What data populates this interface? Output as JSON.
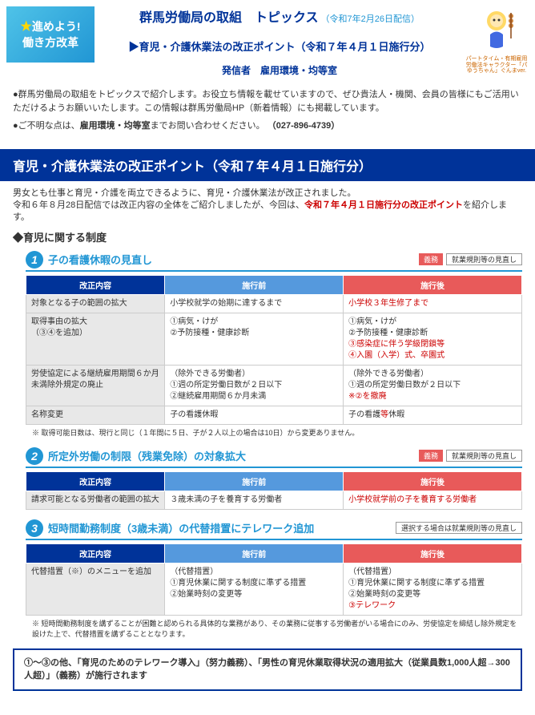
{
  "header": {
    "logo_line1": "進めよう!",
    "logo_line2": "働き方改革",
    "title_main": "群馬労働局の取組　トピックス",
    "title_date": "（令和7年2月26日配信）",
    "subtitle": "▶育児・介護休業法の改正ポイント（令和７年４月１日施行分）",
    "sender": "発信者　雇用環境・均等室",
    "mascot_caption": "パートタイム・有期雇用労働法キャラクター「パゆうちゃん」ぐんまver."
  },
  "intro": {
    "bullet1": "●群馬労働局の取組をトピックスで紹介します。お役立ち情報を載せていますので、ぜひ貴法人・機関、会員の皆様にもご活用いただけるようお願いいたします。この情報は群馬労働局HP（新着情報）にも掲載しています。",
    "bullet2_a": "●ご不明な点は、",
    "bullet2_b": "雇用環境・均等室",
    "bullet2_c": "までお問い合わせください。",
    "phone": "（027-896-4739）"
  },
  "banner": "育児・介護休業法の改正ポイント（令和７年４月１日施行分）",
  "lead": {
    "line1": "男女とも仕事と育児・介護を両立できるように、育児・介護休業法が改正されました。",
    "line2a": "令和６年８月28日配信では改正内容の全体をご紹介しましたが、今回は、",
    "line2b": "令和７年４月１日施行分の改正ポイント",
    "line2c": "を紹介します。"
  },
  "section1_heading": "◆育児に関する制度",
  "tableHeaders": {
    "kaisei": "改正内容",
    "mae": "施行前",
    "ato": "施行後"
  },
  "sub1": {
    "num": "1",
    "title": "子の看護休暇の見直し",
    "badge1": "義務",
    "badge2": "就業規則等の見直し",
    "rows": [
      {
        "c1": "対象となる子の範囲の拡大",
        "c2": "小学校就学の始期に達するまで",
        "c3": "小学校３年生修了まで",
        "c3_red": true
      },
      {
        "c1": "取得事由の拡大\n（③④を追加）",
        "c2": "①病気・けが\n②予防接種・健康診断",
        "c3": "①病気・けが\n②予防接種・健康診断\n③感染症に伴う学級閉鎖等\n④入園（入学）式、卒園式",
        "c3_red_lines": [
          2,
          3
        ]
      },
      {
        "c1": "労使協定による継続雇用期間６か月未満除外規定の廃止",
        "c2": "（除外できる労働者）\n①週の所定労働日数が２日以下\n②継続雇用期間６か月未満",
        "c3": "（除外できる労働者）\n①週の所定労働日数が２日以下\n※②を撤廃",
        "c3_red_lines": [
          2
        ]
      },
      {
        "c1": "名称変更",
        "c2": "子の看護休暇",
        "c3_html": "子の看護<span class='cell-red'>等</span>休暇"
      }
    ],
    "note": "※ 取得可能日数は、現行と同じ（１年間に５日、子が２人以上の場合は10日）から変更ありません。"
  },
  "sub2": {
    "num": "2",
    "title": "所定外労働の制限（残業免除）の対象拡大",
    "badge1": "義務",
    "badge2": "就業規則等の見直し",
    "rows": [
      {
        "c1": "請求可能となる労働者の範囲の拡大",
        "c2": "３歳未満の子を養育する労働者",
        "c3": "小学校就学前の子を養育する労働者",
        "c3_red": true
      }
    ]
  },
  "sub3": {
    "num": "3",
    "title": "短時間勤務制度（3歳未満）の代替措置にテレワーク追加",
    "badge2": "選択する場合は就業規則等の見直し",
    "rows": [
      {
        "c1": "代替措置（※）のメニューを追加",
        "c2": "（代替措置）\n①育児休業に関する制度に準ずる措置\n②始業時刻の変更等",
        "c3": "（代替措置）\n①育児休業に関する制度に準ずる措置\n②始業時刻の変更等\n③テレワーク",
        "c3_red_lines": [
          3
        ]
      }
    ],
    "note": "※ 短時間勤務制度を講ずることが困難と認められる具体的な業務があり、その業務に従事する労働者がいる場合にのみ、労使協定を締結し除外規定を設けた上で、代替措置を講ずることとなります。"
  },
  "footer": {
    "text": "①～③の他、「育児のためのテレワーク導入」（努力義務）、「男性の育児休業取得状況の適用拡大（従業員数1,000人超→300人超）」（義務）が施行されます"
  }
}
